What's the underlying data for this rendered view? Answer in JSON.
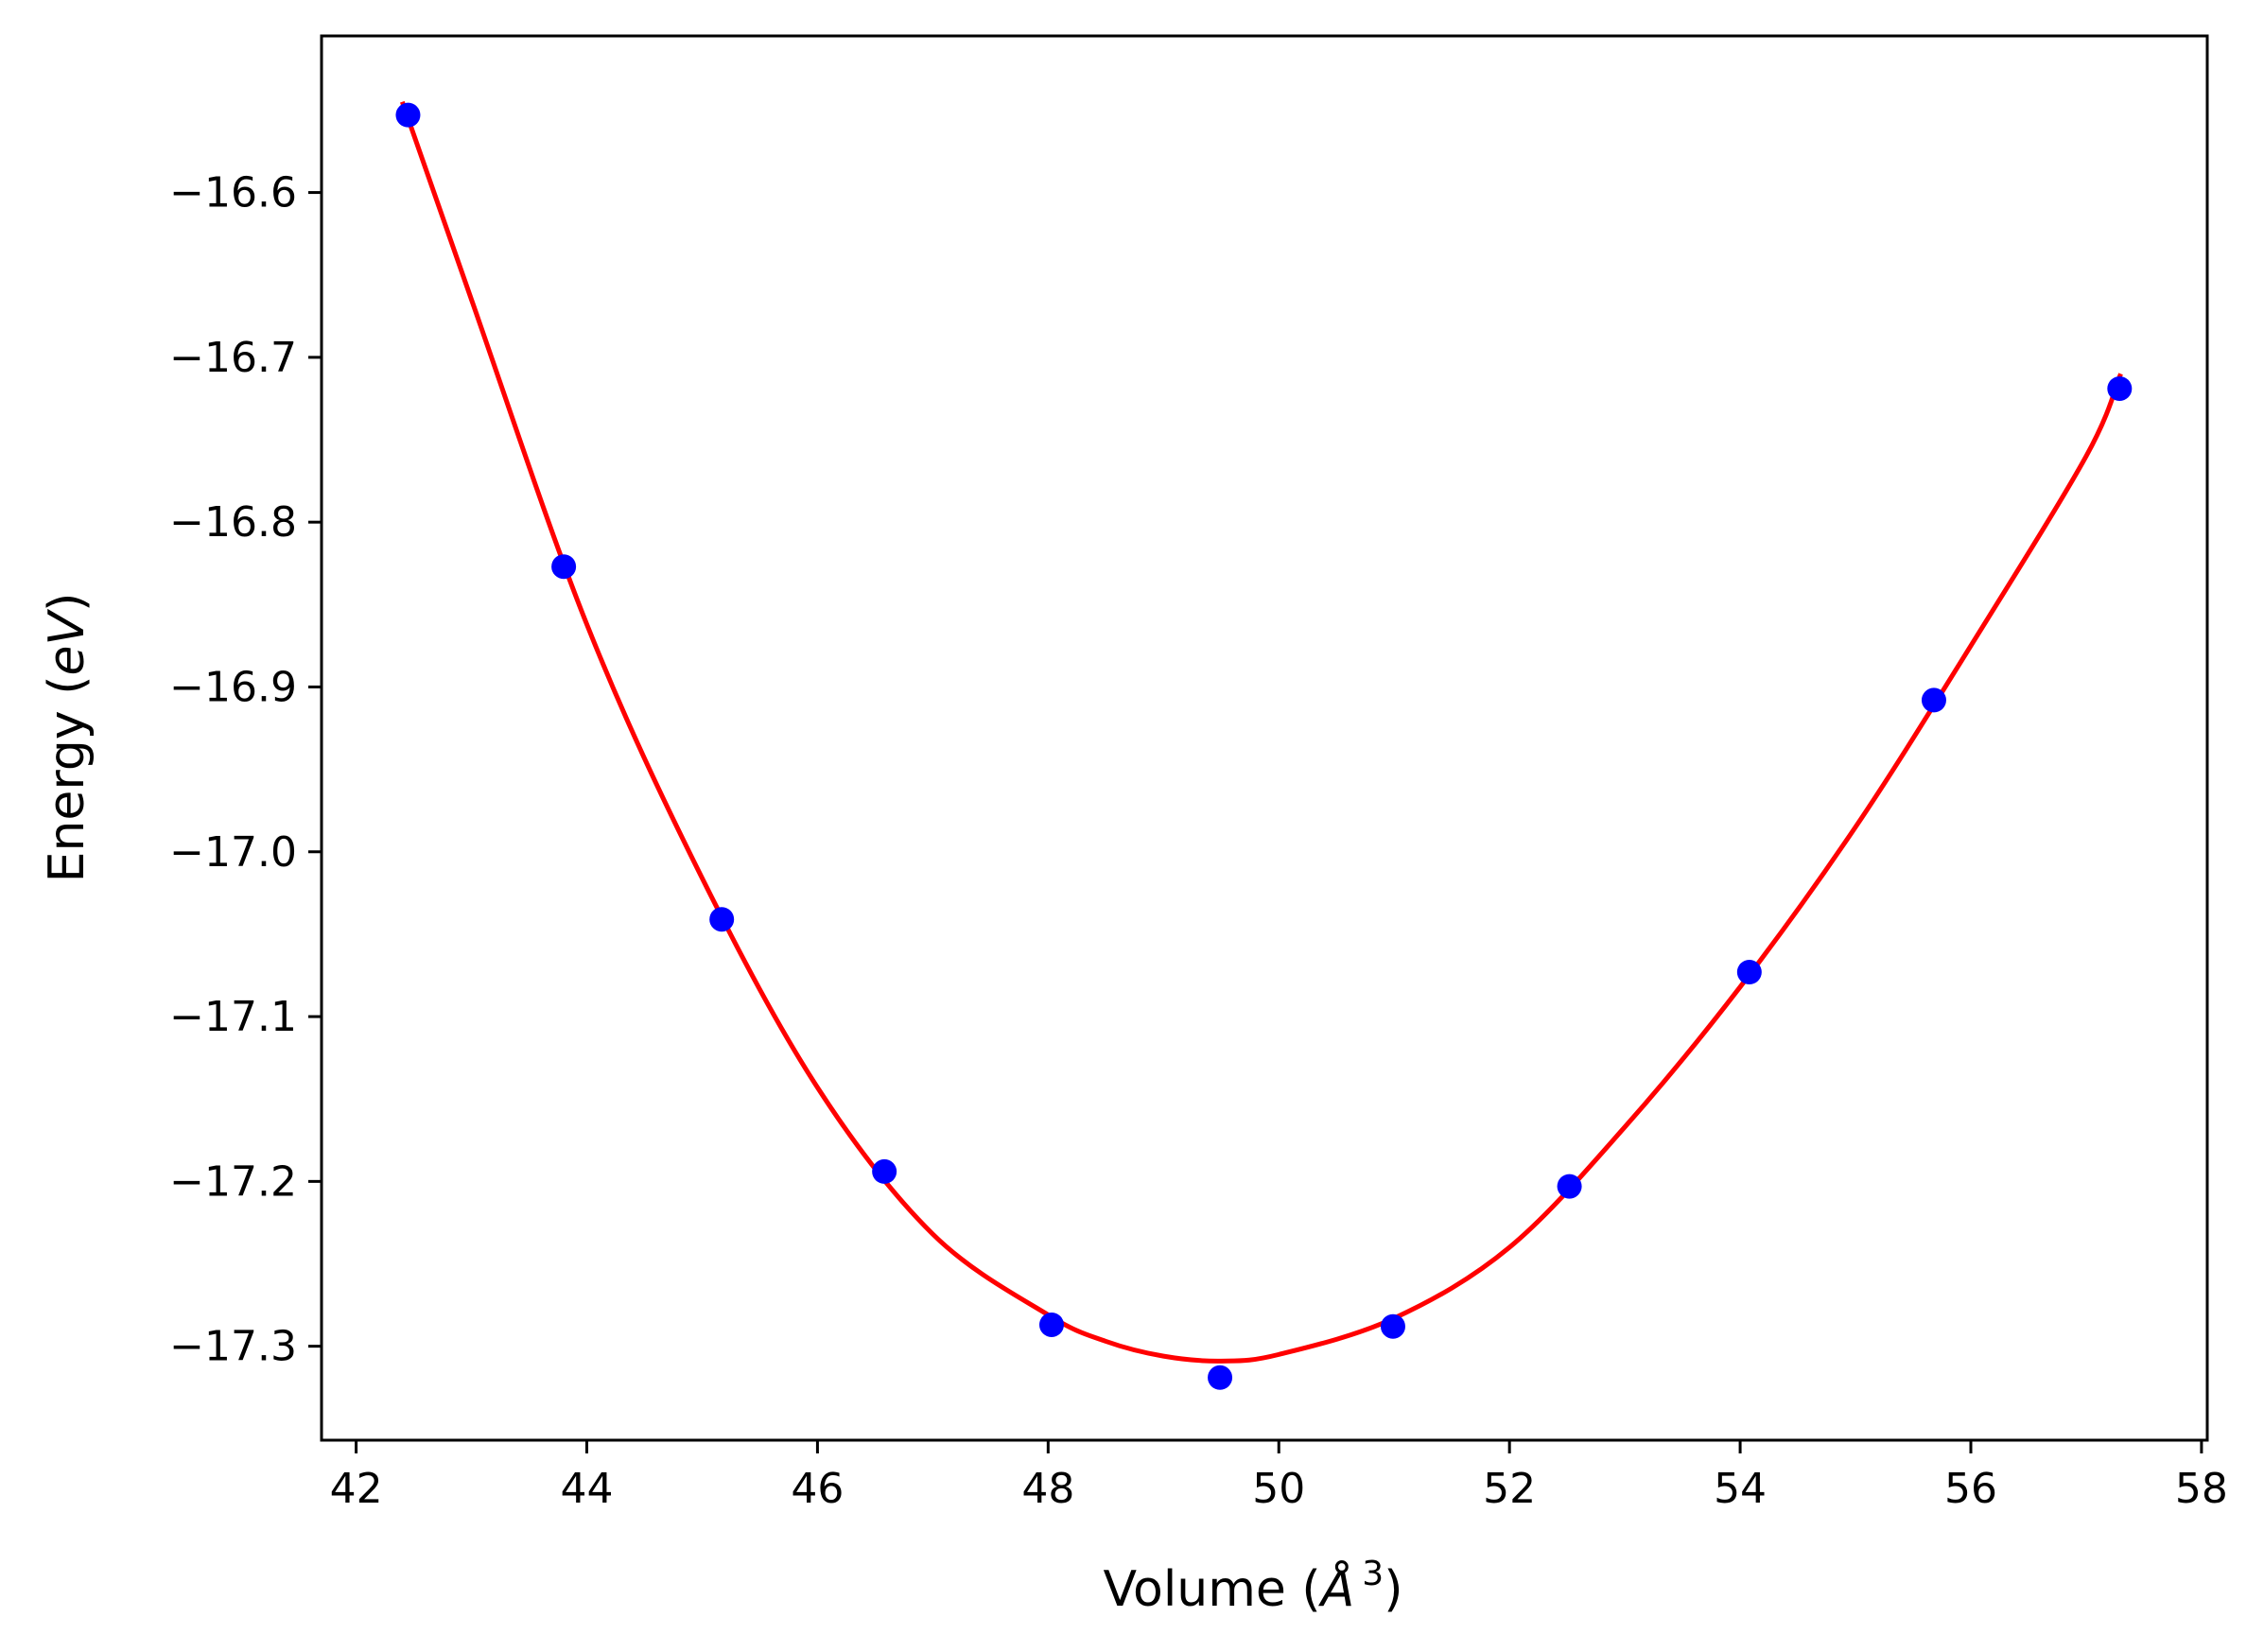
{
  "chart_data": {
    "type": "scatter",
    "xlabel": {
      "prefix": "Volume (",
      "unit": "Å",
      "superscript": "3",
      "suffix": ")"
    },
    "ylabel": {
      "prefix": "Energy (",
      "unit": "eV",
      "suffix": ")"
    },
    "xlim": [
      41.7,
      58.05
    ],
    "ylim": [
      -17.357,
      -16.505
    ],
    "xticks": [
      42,
      44,
      46,
      48,
      50,
      52,
      54,
      56,
      58
    ],
    "yticks": [
      -16.6,
      -16.7,
      -16.8,
      -16.9,
      -17.0,
      -17.1,
      -17.2,
      -17.3
    ],
    "xtick_labels": [
      "42",
      "44",
      "46",
      "48",
      "50",
      "52",
      "54",
      "56",
      "58"
    ],
    "ytick_labels": [
      "−16.6",
      "−16.7",
      "−16.8",
      "−16.9",
      "−17.0",
      "−17.1",
      "−17.2",
      "−17.3"
    ],
    "grid": false,
    "series": [
      {
        "kind": "points",
        "color": "#0000ff",
        "x": [
          42.45,
          43.8,
          45.17,
          46.58,
          48.03,
          49.49,
          50.99,
          52.52,
          54.08,
          55.68,
          57.29
        ],
        "y": [
          -16.553,
          -16.827,
          -17.041,
          -17.194,
          -17.287,
          -17.319,
          -17.288,
          -17.203,
          -17.073,
          -16.908,
          -16.719
        ]
      },
      {
        "kind": "fit-curve",
        "color": "#ff0000",
        "x": [
          42.4,
          43.0,
          44.0,
          45.0,
          46.0,
          47.0,
          48.0,
          48.5,
          49.0,
          49.5,
          50.0,
          51.0,
          52.0,
          53.0,
          54.0,
          55.0,
          56.0,
          57.0,
          57.3
        ],
        "y": [
          -16.545,
          -16.665,
          -16.862,
          -17.016,
          -17.143,
          -17.232,
          -17.281,
          -17.297,
          -17.306,
          -17.309,
          -17.305,
          -17.283,
          -17.24,
          -17.167,
          -17.082,
          -16.985,
          -16.875,
          -16.76,
          -16.71
        ]
      }
    ]
  }
}
